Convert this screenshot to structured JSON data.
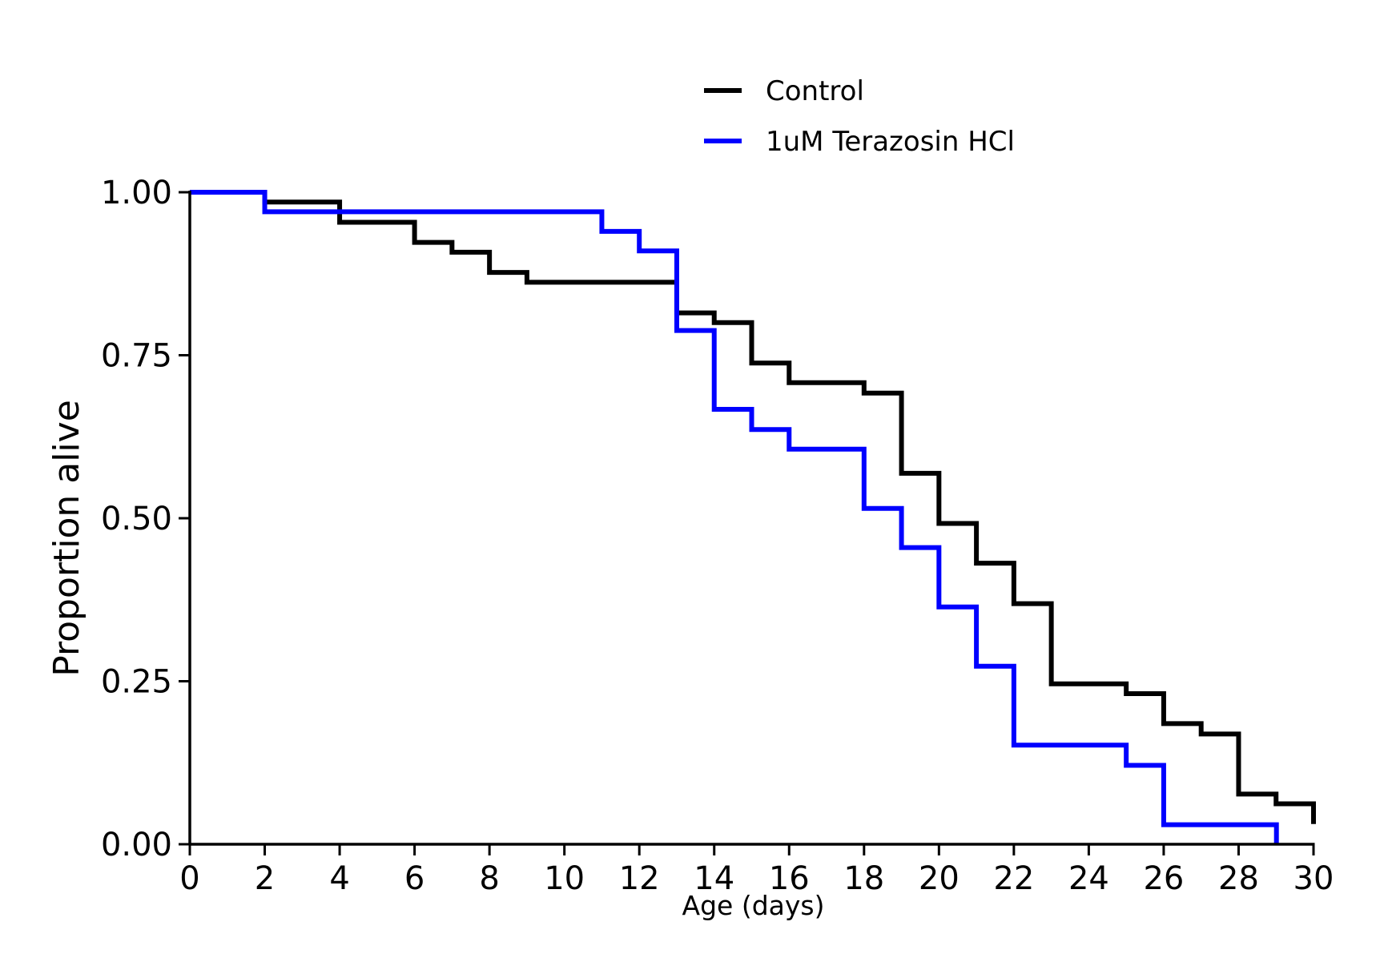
{
  "chart_data": {
    "type": "line",
    "step": "post",
    "title": "",
    "xlabel": "Age (days)",
    "ylabel": "Proportion alive",
    "xlim": [
      0,
      30
    ],
    "ylim": [
      0,
      1
    ],
    "xticks": [
      0,
      2,
      4,
      6,
      8,
      10,
      12,
      14,
      16,
      18,
      20,
      22,
      24,
      26,
      28,
      30
    ],
    "xtick_labels": [
      "0",
      "2",
      "4",
      "6",
      "8",
      "10",
      "12",
      "14",
      "16",
      "18",
      "20",
      "22",
      "24",
      "26",
      "28",
      "30"
    ],
    "yticks": [
      0,
      0.25,
      0.5,
      0.75,
      1.0
    ],
    "ytick_labels": [
      "0.00",
      "0.25",
      "0.50",
      "0.75",
      "1.00"
    ],
    "grid": false,
    "legend_position": "top-center",
    "series": [
      {
        "name": "Control",
        "color": "#000000",
        "x": [
          0,
          2,
          4,
          6,
          7,
          8,
          9,
          13,
          14,
          15,
          16,
          18,
          19,
          20,
          21,
          22,
          23,
          25,
          26,
          27,
          28,
          29,
          30
        ],
        "y": [
          1.0,
          0.985,
          0.954,
          0.923,
          0.908,
          0.877,
          0.862,
          0.815,
          0.8,
          0.738,
          0.708,
          0.692,
          0.569,
          0.492,
          0.431,
          0.369,
          0.246,
          0.231,
          0.185,
          0.169,
          0.077,
          0.062,
          0.031
        ]
      },
      {
        "name": "1uM Terazosin HCl",
        "color": "#0000ff",
        "x": [
          0,
          2,
          11,
          12,
          13,
          14,
          15,
          16,
          18,
          19,
          20,
          21,
          22,
          25,
          26,
          29,
          29.01
        ],
        "y": [
          1.0,
          0.97,
          0.94,
          0.91,
          0.788,
          0.667,
          0.636,
          0.606,
          0.515,
          0.455,
          0.364,
          0.273,
          0.152,
          0.121,
          0.03,
          0.03,
          0.0
        ]
      }
    ]
  }
}
